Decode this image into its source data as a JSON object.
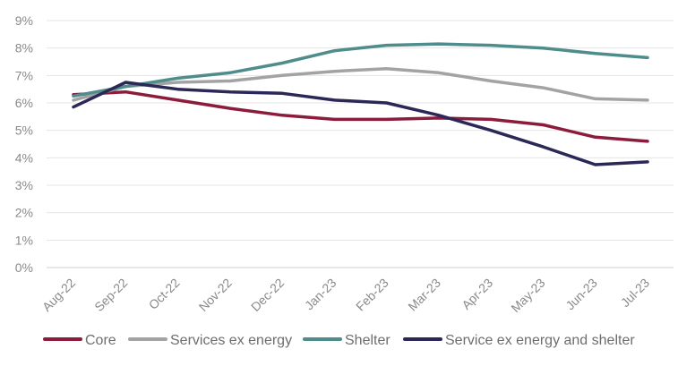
{
  "chart_data": {
    "type": "line",
    "title": "",
    "xlabel": "",
    "ylabel": "",
    "categories": [
      "Aug-22",
      "Sep-22",
      "Oct-22",
      "Nov-22",
      "Dec-22",
      "Jan-23",
      "Feb-23",
      "Mar-23",
      "Apr-23",
      "May-23",
      "Jun-23",
      "Jul-23"
    ],
    "y_ticks": [
      "0%",
      "1%",
      "2%",
      "3%",
      "4%",
      "5%",
      "6%",
      "7%",
      "8%",
      "9%"
    ],
    "ylim": [
      0,
      9
    ],
    "grid": "horizontal",
    "legend_position": "bottom",
    "series": [
      {
        "name": "Core",
        "color": "#8b1c3c",
        "values": [
          6.3,
          6.4,
          6.1,
          5.8,
          5.55,
          5.4,
          5.4,
          5.45,
          5.4,
          5.2,
          4.75,
          4.6
        ]
      },
      {
        "name": "Services ex energy",
        "color": "#a3a3a3",
        "values": [
          6.1,
          6.6,
          6.75,
          6.8,
          7.0,
          7.15,
          7.25,
          7.1,
          6.8,
          6.55,
          6.15,
          6.1
        ]
      },
      {
        "name": "Shelter",
        "color": "#4e8d8b",
        "values": [
          6.25,
          6.6,
          6.9,
          7.1,
          7.45,
          7.9,
          8.1,
          8.15,
          8.1,
          8.0,
          7.8,
          7.65
        ]
      },
      {
        "name": "Service ex energy and shelter",
        "color": "#2b2757",
        "values": [
          5.85,
          6.75,
          6.5,
          6.4,
          6.35,
          6.1,
          6.0,
          5.55,
          5.0,
          4.4,
          3.75,
          3.85
        ]
      }
    ]
  }
}
